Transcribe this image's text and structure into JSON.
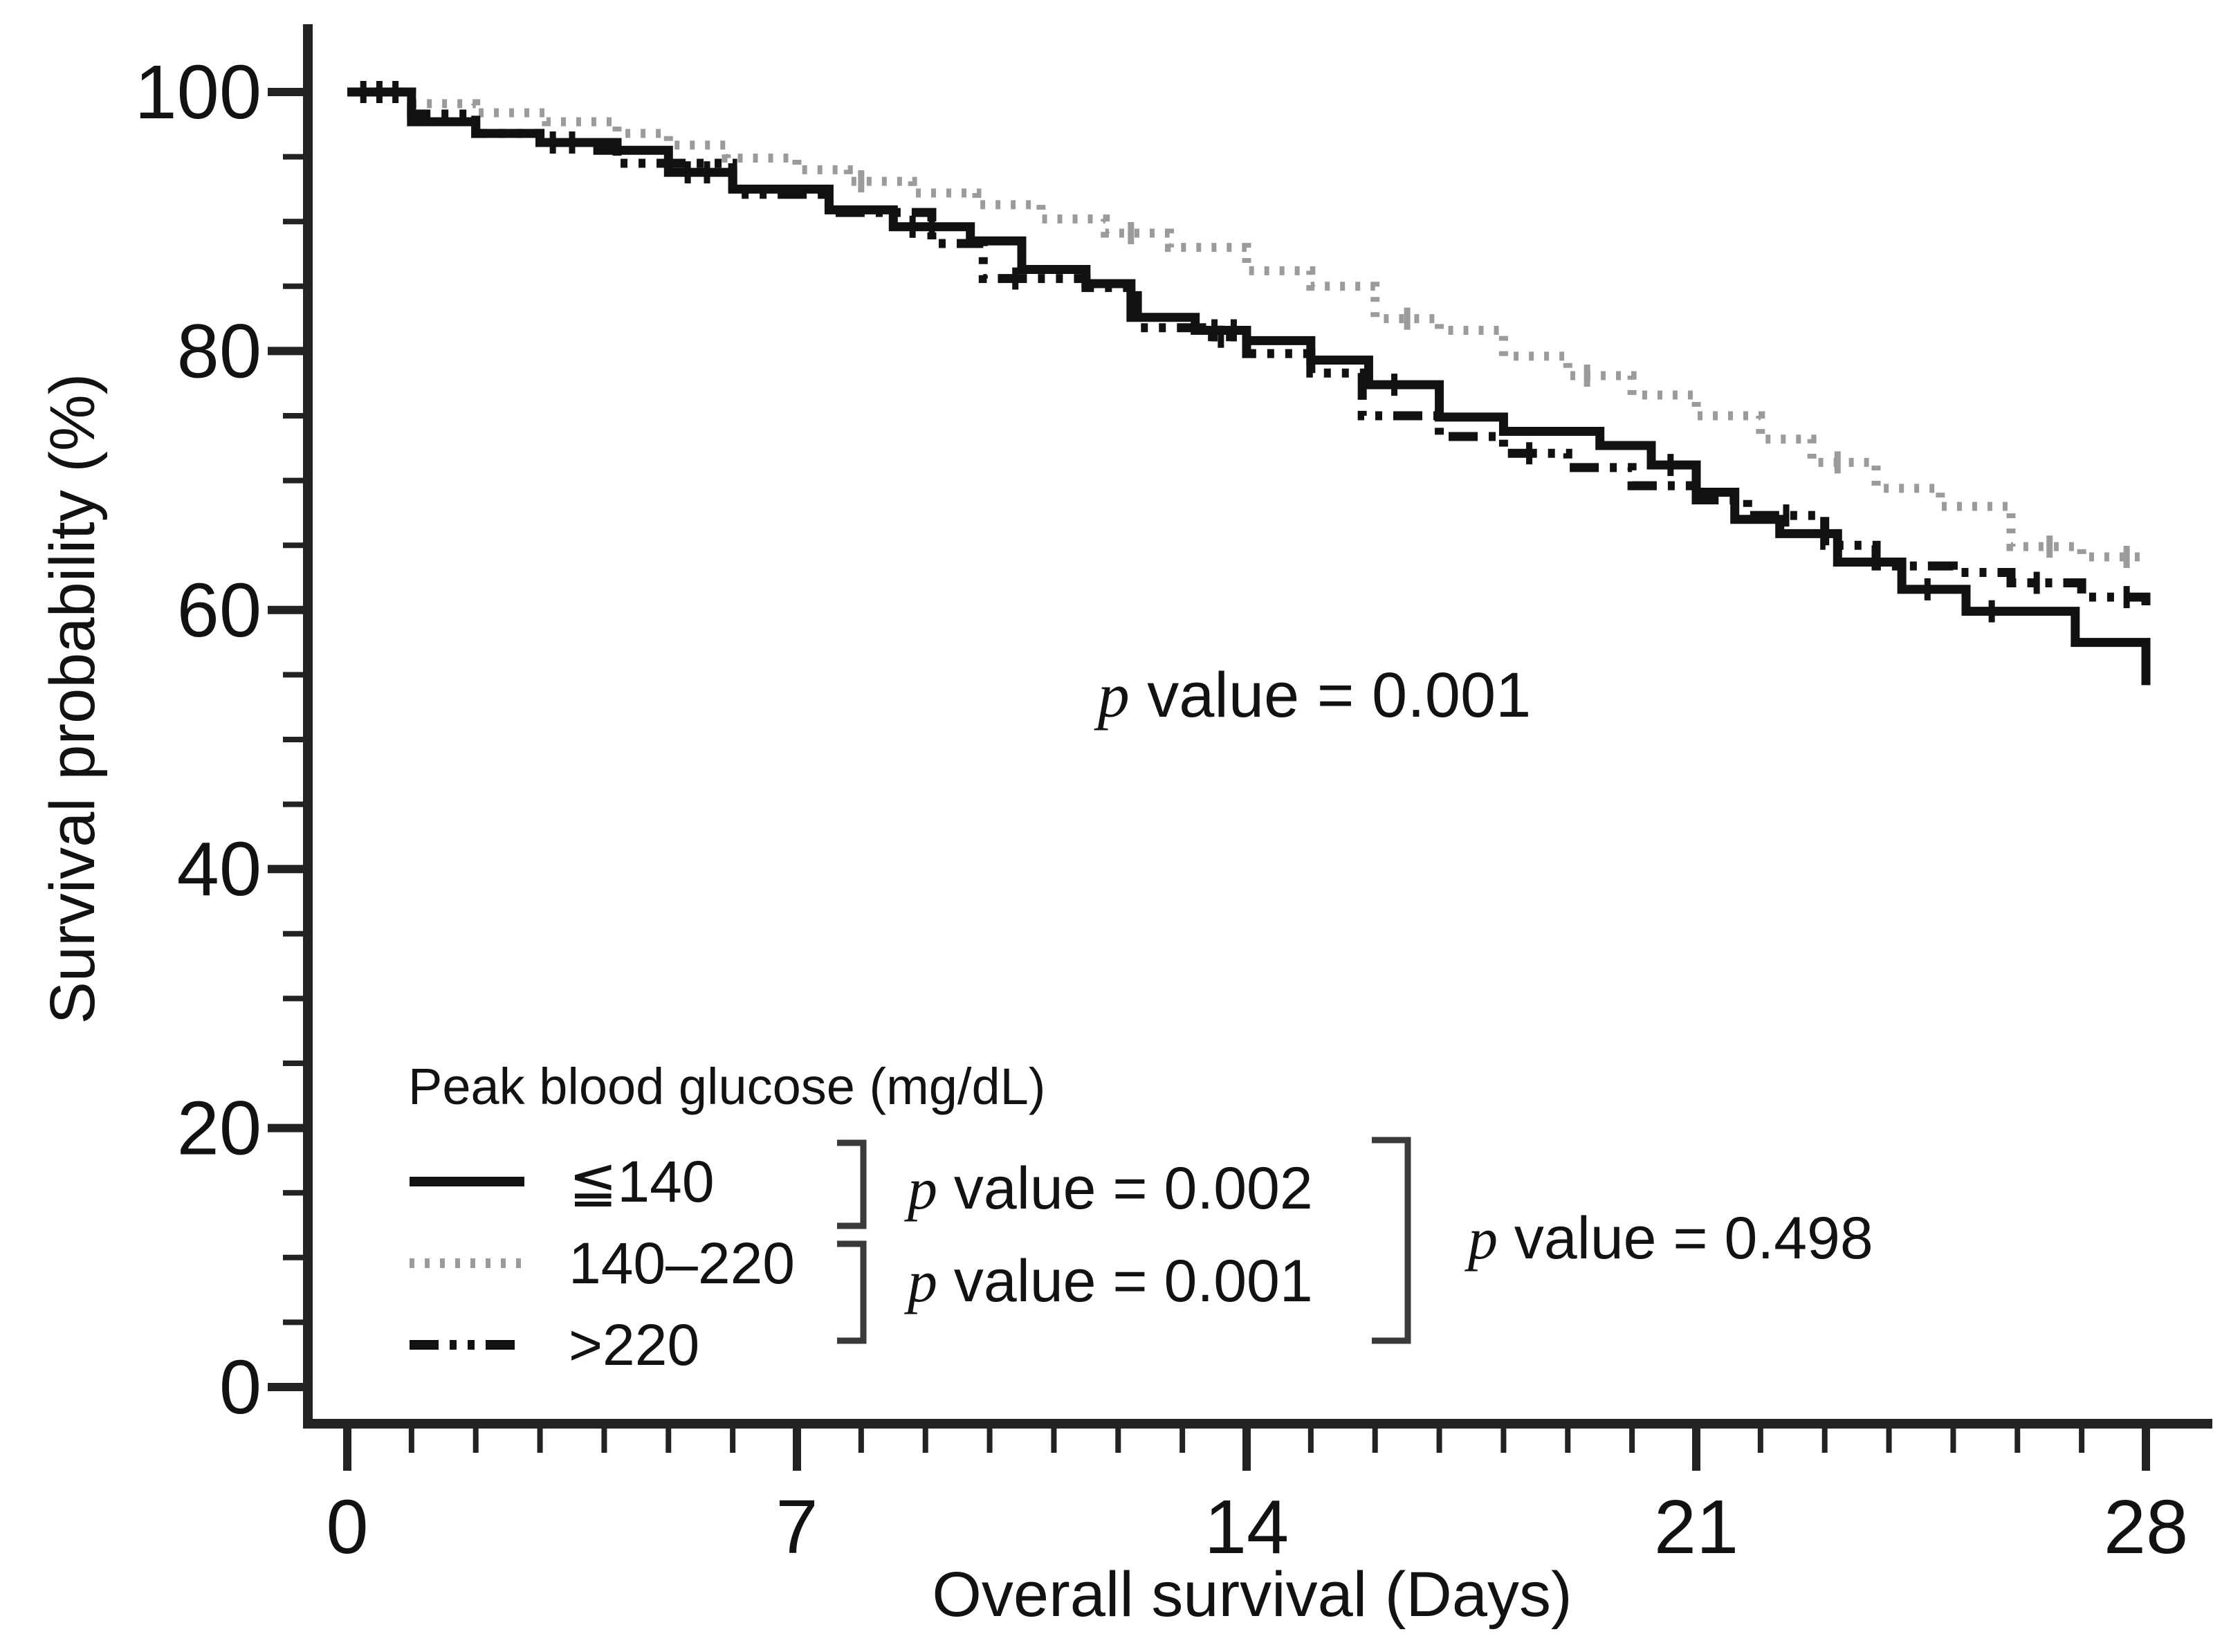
{
  "chart_data": {
    "type": "line",
    "subtype": "kaplan_meier_step_chart",
    "title": "",
    "xlabel": "Overall survival (Days)",
    "ylabel": "Survival probability (%)",
    "xlim": [
      0,
      28
    ],
    "ylim": [
      0,
      100
    ],
    "x_major_ticks": [
      0,
      7,
      14,
      21,
      28
    ],
    "x_minor_step": 1,
    "y_major_ticks": [
      100,
      80,
      60,
      40,
      20,
      0
    ],
    "y_minor_step": 5,
    "grid": false,
    "axis_color": "#222222",
    "legend": {
      "title": "Peak blood glucose (mg/dL)",
      "position": "lower-left-inside",
      "items": [
        {
          "label": "≦140",
          "style": "solid",
          "color": "#111111"
        },
        {
          "label": "140–220",
          "style": "dotted",
          "color": "#9b9b9b"
        },
        {
          "label": ">220",
          "style": "dash-dot-dot",
          "color": "#111111"
        }
      ]
    },
    "annotations": {
      "main": "p value = 0.001",
      "pairwise": [
        {
          "text": "p value = 0.002",
          "compares": [
            "≦140",
            "140–220"
          ]
        },
        {
          "text": "p value = 0.001",
          "compares": [
            "140–220",
            ">220"
          ]
        },
        {
          "text": "p value = 0.498",
          "compares": [
            "≦140",
            ">220"
          ]
        }
      ]
    },
    "series": [
      {
        "name": "≦140",
        "style": "solid",
        "color": "#111111",
        "points": [
          [
            0,
            100
          ],
          [
            1,
            97.7
          ],
          [
            2,
            96.8
          ],
          [
            3,
            96.1
          ],
          [
            3.9,
            95.5
          ],
          [
            5,
            93.8
          ],
          [
            6,
            92.5
          ],
          [
            7.5,
            90.9
          ],
          [
            8.5,
            89.6
          ],
          [
            9.7,
            88.5
          ],
          [
            10.5,
            86.3
          ],
          [
            11.5,
            85.2
          ],
          [
            12.2,
            82.6
          ],
          [
            13.2,
            81.6
          ],
          [
            14,
            80.8
          ],
          [
            15,
            79.3
          ],
          [
            15.9,
            77.4
          ],
          [
            17,
            74.9
          ],
          [
            18,
            73.8
          ],
          [
            19.5,
            72.7
          ],
          [
            20.3,
            71.2
          ],
          [
            21,
            69.1
          ],
          [
            21.6,
            67.0
          ],
          [
            22.3,
            65.9
          ],
          [
            23.2,
            63.7
          ],
          [
            24.2,
            61.6
          ],
          [
            25.2,
            59.9
          ],
          [
            26.9,
            57.5
          ],
          [
            28,
            54.2
          ]
        ],
        "censor_marks": [
          [
            0.25,
            100
          ],
          [
            0.5,
            100
          ],
          [
            0.75,
            100
          ],
          [
            3.2,
            96.1
          ],
          [
            3.5,
            96.1
          ],
          [
            5.3,
            93.8
          ],
          [
            5.6,
            93.8
          ],
          [
            8.8,
            89.6
          ],
          [
            9.1,
            89.6
          ],
          [
            13.5,
            81.6
          ],
          [
            13.8,
            81.6
          ],
          [
            16.3,
            77.4
          ],
          [
            20.6,
            71.2
          ],
          [
            24.6,
            61.6
          ],
          [
            25.6,
            59.9
          ]
        ]
      },
      {
        "name": "140–220",
        "style": "dotted",
        "color": "#9b9b9b",
        "points": [
          [
            0,
            100
          ],
          [
            1,
            99.1
          ],
          [
            2,
            98.4
          ],
          [
            3.1,
            97.7
          ],
          [
            4.2,
            96.8
          ],
          [
            5,
            95.9
          ],
          [
            5.9,
            94.9
          ],
          [
            7,
            94.0
          ],
          [
            7.8,
            93.1
          ],
          [
            8.8,
            92.2
          ],
          [
            9.8,
            91.3
          ],
          [
            10.8,
            90.2
          ],
          [
            11.8,
            89.1
          ],
          [
            12.8,
            88.0
          ],
          [
            14,
            86.2
          ],
          [
            15,
            85.0
          ],
          [
            16,
            82.5
          ],
          [
            17,
            81.6
          ],
          [
            18,
            79.6
          ],
          [
            19,
            78.1
          ],
          [
            20,
            76.6
          ],
          [
            21,
            75.0
          ],
          [
            22,
            73.2
          ],
          [
            22.8,
            71.4
          ],
          [
            23.8,
            69.4
          ],
          [
            24.8,
            68.0
          ],
          [
            25.9,
            64.9
          ],
          [
            27,
            64.1
          ],
          [
            28,
            64.1
          ]
        ],
        "censor_marks": [
          [
            8,
            93.1
          ],
          [
            12.2,
            89.1
          ],
          [
            16.5,
            82.5
          ],
          [
            19.3,
            78.1
          ],
          [
            23.2,
            71.4
          ],
          [
            26.5,
            64.9
          ],
          [
            27.7,
            64.1
          ]
        ]
      },
      {
        "name": ">220",
        "style": "dash-dot-dot",
        "color": "#111111",
        "points": [
          [
            0,
            100
          ],
          [
            1,
            98.3
          ],
          [
            2,
            96.8
          ],
          [
            3,
            96.1
          ],
          [
            4.2,
            94.5
          ],
          [
            6,
            92.1
          ],
          [
            7.5,
            90.7
          ],
          [
            9.1,
            88.3
          ],
          [
            9.9,
            85.6
          ],
          [
            11.5,
            84.9
          ],
          [
            12.3,
            81.8
          ],
          [
            13.3,
            81.1
          ],
          [
            14,
            79.8
          ],
          [
            15,
            78.3
          ],
          [
            15.8,
            75.0
          ],
          [
            17,
            73.4
          ],
          [
            18,
            72.1
          ],
          [
            19,
            71.0
          ],
          [
            20,
            69.6
          ],
          [
            21,
            68.5
          ],
          [
            21.8,
            67.3
          ],
          [
            23,
            65.0
          ],
          [
            23.8,
            63.4
          ],
          [
            25,
            62.9
          ],
          [
            25.9,
            62.1
          ],
          [
            27,
            61.0
          ],
          [
            28,
            60.1
          ]
        ],
        "censor_marks": [
          [
            10.4,
            85.6
          ],
          [
            13.6,
            81.1
          ],
          [
            18.4,
            72.1
          ],
          [
            22.4,
            67.3
          ],
          [
            26.3,
            62.1
          ],
          [
            27.7,
            61.0
          ]
        ]
      }
    ]
  }
}
